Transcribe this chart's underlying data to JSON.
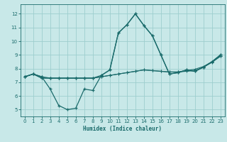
{
  "xlabel": "Humidex (Indice chaleur)",
  "xlim": [
    -0.5,
    23.5
  ],
  "ylim": [
    4.5,
    12.7
  ],
  "yticks": [
    5,
    6,
    7,
    8,
    9,
    10,
    11,
    12
  ],
  "xticks": [
    0,
    1,
    2,
    3,
    4,
    5,
    6,
    7,
    8,
    9,
    10,
    11,
    12,
    13,
    14,
    15,
    16,
    17,
    18,
    19,
    20,
    21,
    22,
    23
  ],
  "background_color": "#c8e8e8",
  "grid_color": "#9ecece",
  "line_color": "#1a6b6b",
  "series": [
    [
      7.4,
      7.6,
      7.3,
      7.3,
      7.3,
      7.3,
      7.3,
      7.3,
      7.3,
      7.4,
      7.5,
      7.6,
      7.7,
      7.8,
      7.9,
      7.85,
      7.8,
      7.75,
      7.75,
      7.8,
      7.85,
      8.1,
      8.45,
      8.9
    ],
    [
      7.4,
      7.6,
      7.3,
      7.3,
      7.3,
      7.3,
      7.3,
      7.3,
      7.3,
      7.4,
      7.5,
      7.6,
      7.7,
      7.8,
      7.9,
      7.85,
      7.8,
      7.75,
      7.75,
      7.85,
      7.95,
      8.15,
      8.5,
      8.9
    ],
    [
      7.4,
      7.6,
      7.4,
      6.5,
      5.3,
      5.0,
      5.1,
      6.5,
      6.4,
      7.5,
      7.9,
      10.6,
      11.2,
      12.0,
      11.15,
      10.4,
      9.0,
      7.6,
      7.7,
      7.9,
      7.8,
      8.1,
      8.5,
      9.0
    ],
    [
      7.4,
      7.6,
      7.4,
      7.3,
      7.3,
      7.3,
      7.3,
      7.3,
      7.3,
      7.5,
      7.9,
      10.6,
      11.2,
      12.0,
      11.15,
      10.4,
      9.0,
      7.6,
      7.7,
      7.9,
      7.8,
      8.1,
      8.5,
      9.0
    ]
  ]
}
